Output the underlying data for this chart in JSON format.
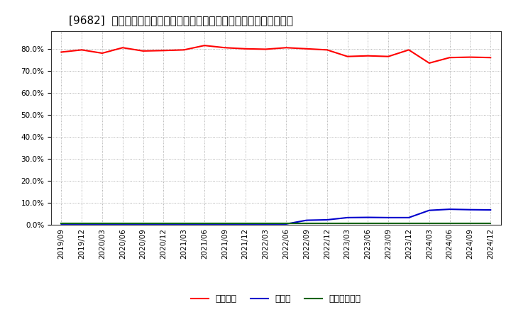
{
  "title": "[9682]  自己資本、のれん、繰延税金資産の総資産に対する比率の推移",
  "x_labels": [
    "2019/09",
    "2019/12",
    "2020/03",
    "2020/06",
    "2020/09",
    "2020/12",
    "2021/03",
    "2021/06",
    "2021/09",
    "2021/12",
    "2022/03",
    "2022/06",
    "2022/09",
    "2022/12",
    "2023/03",
    "2023/06",
    "2023/09",
    "2023/12",
    "2024/03",
    "2024/06",
    "2024/09",
    "2024/12"
  ],
  "jiko_shihon": [
    78.5,
    79.5,
    78.0,
    80.5,
    79.0,
    79.2,
    79.5,
    81.5,
    80.5,
    80.0,
    79.8,
    80.5,
    80.0,
    79.5,
    76.5,
    76.8,
    76.5,
    79.5,
    73.5,
    76.0,
    76.2,
    76.0
  ],
  "noren": [
    0.3,
    0.3,
    0.3,
    0.3,
    0.3,
    0.3,
    0.3,
    0.3,
    0.3,
    0.3,
    0.3,
    0.3,
    2.0,
    2.2,
    3.2,
    3.3,
    3.2,
    3.2,
    6.5,
    7.0,
    6.8,
    6.7
  ],
  "kurinobe": [
    0.5,
    0.5,
    0.5,
    0.5,
    0.5,
    0.5,
    0.5,
    0.5,
    0.5,
    0.5,
    0.5,
    0.5,
    0.5,
    0.5,
    0.5,
    0.5,
    0.5,
    0.5,
    0.5,
    0.5,
    0.5,
    0.5
  ],
  "line_colors": {
    "jiko_shihon": "#ff0000",
    "noren": "#0000cd",
    "kurinobe": "#006400"
  },
  "legend_labels": {
    "jiko_shihon": "自己資本",
    "noren": "のれん",
    "kurinobe": "繰延税金資産"
  },
  "ylim": [
    0,
    88
  ],
  "yticks": [
    0.0,
    10.0,
    20.0,
    30.0,
    40.0,
    50.0,
    60.0,
    70.0,
    80.0
  ],
  "background_color": "#ffffff",
  "plot_background": "#ffffff",
  "grid_color": "#999999",
  "title_fontsize": 11,
  "axis_fontsize": 7.5,
  "legend_fontsize": 9
}
